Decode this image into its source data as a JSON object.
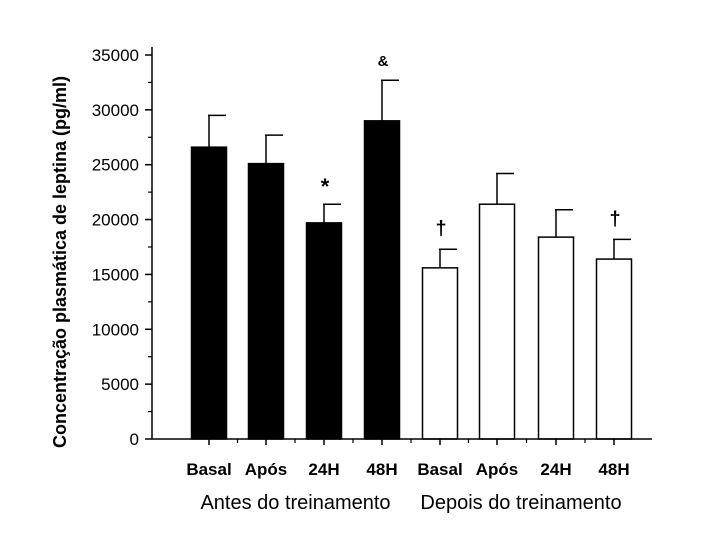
{
  "chart_data": {
    "type": "bar",
    "title": "",
    "xlabel": "",
    "ylabel": "Concentração plasmática de leptina (pg/ml)",
    "ylim": [
      0,
      35000
    ],
    "yticks": [
      0,
      5000,
      10000,
      15000,
      20000,
      25000,
      30000,
      35000
    ],
    "grid": false,
    "categories": [
      "Basal",
      "Após",
      "24H",
      "48H",
      "Basal",
      "Após",
      "24H",
      "48H"
    ],
    "groups": [
      {
        "label": "Antes do treinamento",
        "color": "#000000",
        "category_indices": [
          0,
          1,
          2,
          3
        ]
      },
      {
        "label": "Depois do treinamento",
        "color": "#ffffff",
        "category_indices": [
          4,
          5,
          6,
          7
        ]
      }
    ],
    "values": [
      26600,
      25100,
      19700,
      29000,
      15600,
      21400,
      18400,
      16400
    ],
    "errors": [
      2900,
      2600,
      1700,
      3700,
      1700,
      2800,
      2500,
      1800
    ],
    "annotations": [
      {
        "index": 2,
        "text": "*"
      },
      {
        "index": 3,
        "text": "&"
      },
      {
        "index": 4,
        "text": "†"
      },
      {
        "index": 7,
        "text": "†"
      }
    ]
  }
}
